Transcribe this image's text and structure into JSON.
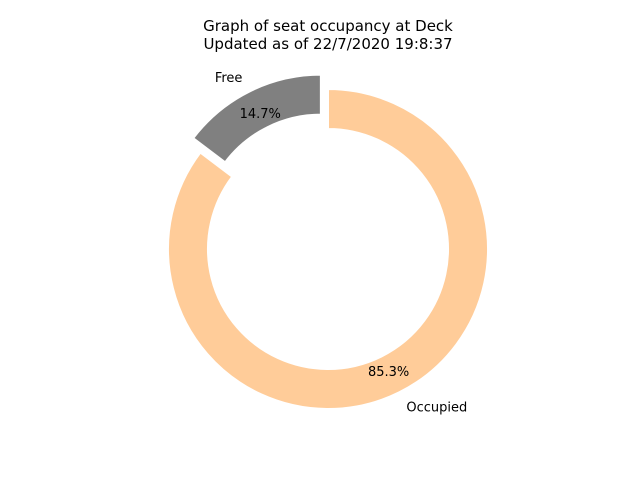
{
  "chart_data": {
    "type": "pie",
    "style": "donut",
    "title": "Graph of seat occupancy at Deck",
    "subtitle": "Updated as of 22/7/2020 19:8:37",
    "categories": [
      "Occupied",
      "Free"
    ],
    "values": [
      85.3,
      14.7
    ],
    "percent_labels": [
      "85.3%",
      "14.7%"
    ],
    "colors": [
      "#ffcc99",
      "#808080"
    ],
    "exploded": [
      false,
      true
    ],
    "start_angle_deg": 90,
    "direction": "clockwise"
  }
}
